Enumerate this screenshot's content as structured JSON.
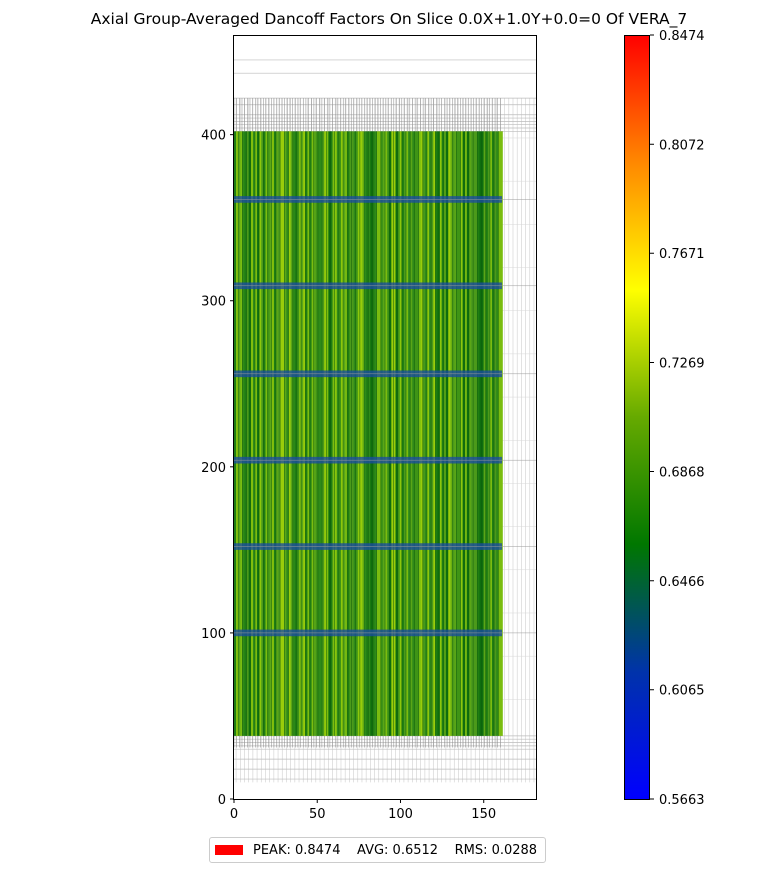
{
  "chart_data": {
    "type": "heatmap",
    "title": "Axial Group-Averaged Dancoff Factors On Slice 0.0X+1.0Y+0.0=0 Of VERA_7",
    "xlabel": "",
    "ylabel": "",
    "xlim": [
      0,
      182
    ],
    "ylim": [
      0,
      460
    ],
    "x_ticks": [
      "0",
      "50",
      "100",
      "150"
    ],
    "y_ticks": [
      "0",
      "100",
      "200",
      "300",
      "400"
    ],
    "x_tick_values": [
      0,
      50,
      100,
      150
    ],
    "y_tick_values": [
      0,
      100,
      200,
      300,
      400
    ],
    "data_region": {
      "x": [
        0,
        161
      ],
      "y": [
        38,
        402
      ]
    },
    "grid_region": {
      "x": [
        0,
        182
      ],
      "y": [
        10,
        422
      ]
    },
    "spacer_grid_levels": [
      100,
      152,
      204,
      256,
      309,
      361
    ],
    "colorbar": {
      "min": 0.5663,
      "max": 0.8474,
      "tick_values": [
        0.5663,
        0.6065,
        0.6466,
        0.6868,
        0.7269,
        0.7671,
        0.8072,
        0.8474
      ],
      "tick_labels": [
        "0.5663",
        "0.6065",
        "0.6466",
        "0.6868",
        "0.7269",
        "0.7671",
        "0.8072",
        "0.8474"
      ],
      "colors": [
        "#0000ff",
        "#0033aa",
        "#007700",
        "#66aa00",
        "#ffff00",
        "#ff8800",
        "#ff0000"
      ]
    },
    "legend": {
      "color": "#ff0000",
      "peak": "PEAK: 0.8474",
      "avg": "AVG: 0.6512",
      "rms": "RMS: 0.0288",
      "placement": "bottom-center"
    }
  }
}
